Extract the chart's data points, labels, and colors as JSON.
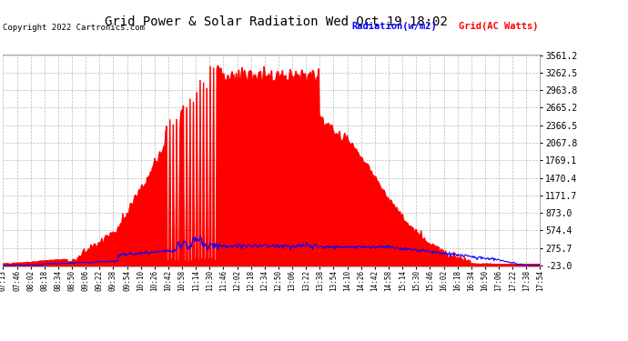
{
  "title": "Grid Power & Solar Radiation Wed Oct 19 18:02",
  "copyright": "Copyright 2022 Cartronics.com",
  "legend_radiation": "Radiation(w/m2)",
  "legend_grid": "Grid(AC Watts)",
  "yticks": [
    3561.2,
    3262.5,
    2963.8,
    2665.2,
    2366.5,
    2067.8,
    1769.1,
    1470.4,
    1171.7,
    873.0,
    574.4,
    275.7,
    -23.0
  ],
  "ymin": -23.0,
  "ymax": 3561.2,
  "plot_bg_color": "#ffffff",
  "radiation_fill_color": "#ff0000",
  "radiation_line_color": "#ff0000",
  "grid_line_color": "#0000ff",
  "title_color": "#000000",
  "copyright_color": "#000000",
  "legend_radiation_color": "#0000ff",
  "legend_grid_color": "#ff0000",
  "grid_line_style": "--",
  "grid_line_color_ax": "#aaaaaa",
  "xtick_labels": [
    "07:13",
    "07:46",
    "08:02",
    "08:18",
    "08:34",
    "08:50",
    "09:06",
    "09:22",
    "09:38",
    "09:54",
    "10:10",
    "10:26",
    "10:42",
    "10:58",
    "11:14",
    "11:30",
    "11:46",
    "12:02",
    "12:18",
    "12:34",
    "12:50",
    "13:06",
    "13:22",
    "13:38",
    "13:54",
    "14:10",
    "14:26",
    "14:42",
    "14:58",
    "15:14",
    "15:30",
    "15:46",
    "16:02",
    "16:18",
    "16:34",
    "16:50",
    "17:06",
    "17:22",
    "17:38",
    "17:54"
  ]
}
